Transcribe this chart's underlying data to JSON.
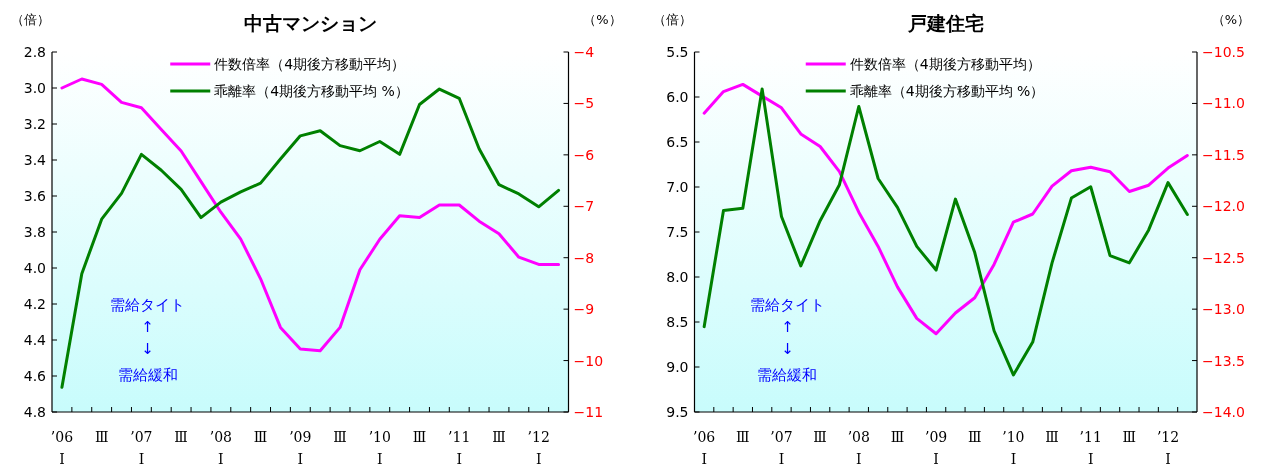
{
  "chart_data": [
    {
      "type": "line",
      "title": "中古マンション",
      "ylabel": "（倍）",
      "y2label": "（%）",
      "legend": "top",
      "categories": [
        "’06\nⅠ",
        null,
        "Ⅲ",
        null,
        "’07\nⅠ",
        null,
        "Ⅲ",
        null,
        "’08\nⅠ",
        null,
        "Ⅲ",
        null,
        "’09\nⅠ",
        null,
        "Ⅲ",
        null,
        "’10\nⅠ",
        null,
        "Ⅲ",
        null,
        "’11\nⅠ",
        null,
        "Ⅲ",
        null,
        "’12\nⅠ",
        null
      ],
      "ylim": [
        4.8,
        2.8
      ],
      "yticks": [
        {
          "value": 2.8,
          "label": "2.8"
        },
        {
          "value": 3.0,
          "label": "3.0"
        },
        {
          "value": 3.2,
          "label": "3.2"
        },
        {
          "value": 3.4,
          "label": "3.4"
        },
        {
          "value": 3.6,
          "label": "3.6"
        },
        {
          "value": 3.8,
          "label": "3.8"
        },
        {
          "value": 4.0,
          "label": "4.0"
        },
        {
          "value": 4.2,
          "label": "4.2"
        },
        {
          "value": 4.4,
          "label": "4.4"
        },
        {
          "value": 4.6,
          "label": "4.6"
        },
        {
          "value": 4.8,
          "label": "4.8"
        }
      ],
      "y2lim": [
        -11,
        -4
      ],
      "y2ticks": [
        {
          "value": -4,
          "label": "−4"
        },
        {
          "value": -5,
          "label": "−5"
        },
        {
          "value": -6,
          "label": "−6"
        },
        {
          "value": -7,
          "label": "−7"
        },
        {
          "value": -8,
          "label": "−8"
        },
        {
          "value": -9,
          "label": "−9"
        },
        {
          "value": -10,
          "label": "−10"
        },
        {
          "value": -11,
          "label": "−11"
        }
      ],
      "series": [
        {
          "name": "件数倍率（4期後方移動平均）",
          "color": "#ff00ff",
          "values": [
            3.0,
            2.95,
            2.98,
            3.08,
            3.11,
            3.23,
            3.35,
            3.52,
            3.69,
            3.84,
            4.06,
            4.33,
            4.45,
            4.46,
            4.33,
            4.01,
            3.84,
            3.71,
            3.72,
            3.65,
            3.65,
            3.74,
            3.81,
            3.94,
            3.98,
            3.98
          ]
        },
        {
          "name": "乖離率（4期後方移動平均 %）",
          "color": "#008000",
          "axis": "y2",
          "values": [
            -10.52,
            -8.31,
            -7.25,
            -6.75,
            -5.99,
            -6.3,
            -6.67,
            -7.22,
            -6.92,
            -6.72,
            -6.55,
            -6.08,
            -5.63,
            -5.53,
            -5.82,
            -5.92,
            -5.74,
            -5.99,
            -5.02,
            -4.72,
            -4.9,
            -5.88,
            -6.58,
            -6.76,
            -7.01,
            -6.69
          ]
        }
      ],
      "annotations": [
        "需給タイト",
        "↑",
        "↓",
        "需給緩和"
      ]
    },
    {
      "type": "line",
      "title": "戸建住宅",
      "ylabel": "（倍）",
      "y2label": "（%）",
      "legend": "top",
      "categories": [
        "’06\nⅠ",
        null,
        "Ⅲ",
        null,
        "’07\nⅠ",
        null,
        "Ⅲ",
        null,
        "’08\nⅠ",
        null,
        "Ⅲ",
        null,
        "’09\nⅠ",
        null,
        "Ⅲ",
        null,
        "’10\nⅠ",
        null,
        "Ⅲ",
        null,
        "’11\nⅠ",
        null,
        "Ⅲ",
        null,
        "’12\nⅠ",
        null
      ],
      "ylim": [
        9.5,
        5.5
      ],
      "yticks": [
        {
          "value": 5.5,
          "label": "5.5"
        },
        {
          "value": 6.0,
          "label": "6.0"
        },
        {
          "value": 6.5,
          "label": "6.5"
        },
        {
          "value": 7.0,
          "label": "7.0"
        },
        {
          "value": 7.5,
          "label": "7.5"
        },
        {
          "value": 8.0,
          "label": "8.0"
        },
        {
          "value": 8.5,
          "label": "8.5"
        },
        {
          "value": 9.0,
          "label": "9.0"
        },
        {
          "value": 9.5,
          "label": "9.5"
        }
      ],
      "y2lim": [
        -14,
        -10.5
      ],
      "y2ticks": [
        {
          "value": -10.5,
          "label": "−10.5"
        },
        {
          "value": -11,
          "label": "−11.0"
        },
        {
          "value": -11.5,
          "label": "−11.5"
        },
        {
          "value": -12,
          "label": "−12.0"
        },
        {
          "value": -12.5,
          "label": "−12.5"
        },
        {
          "value": -13,
          "label": "−13.0"
        },
        {
          "value": -13.5,
          "label": "−13.5"
        },
        {
          "value": -14,
          "label": "−14.0"
        }
      ],
      "series": [
        {
          "name": "件数倍率（4期後方移動平均）",
          "color": "#ff00ff",
          "values": [
            6.18,
            5.94,
            5.86,
            5.99,
            6.12,
            6.41,
            6.55,
            6.83,
            7.28,
            7.66,
            8.11,
            8.46,
            8.63,
            8.4,
            8.23,
            7.86,
            7.39,
            7.3,
            6.99,
            6.82,
            6.78,
            6.83,
            7.05,
            6.98,
            6.79,
            6.65
          ]
        },
        {
          "name": "乖離率（4期後方移動平均 %）",
          "color": "#008000",
          "axis": "y2",
          "values": [
            -13.17,
            -12.04,
            -12.02,
            -10.86,
            -12.1,
            -12.58,
            -12.14,
            -11.79,
            -11.03,
            -11.73,
            -12.01,
            -12.39,
            -12.62,
            -11.93,
            -12.45,
            -13.21,
            -13.64,
            -13.32,
            -12.55,
            -11.92,
            -11.81,
            -12.48,
            -12.55,
            -12.23,
            -11.77,
            -12.08
          ]
        }
      ],
      "annotations": [
        "需給タイト",
        "↑",
        "↓",
        "需給緩和"
      ]
    }
  ]
}
